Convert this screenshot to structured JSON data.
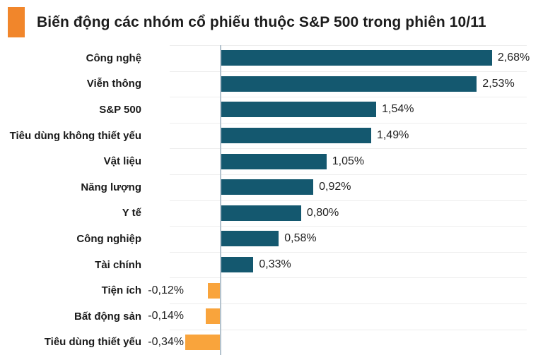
{
  "title": {
    "text": "Biến động các nhóm cổ phiếu thuộc S&P 500 trong phiên 10/11",
    "accent_color": "#f1862b"
  },
  "chart_data": {
    "type": "bar",
    "orientation": "horizontal",
    "title": "Biến động các nhóm cổ phiếu thuộc S&P 500 trong phiên 10/11",
    "unit": "%",
    "decimal_separator": ",",
    "categories": [
      "Công nghệ",
      "Viễn thông",
      "S&P 500",
      "Tiêu dùng không thiết yếu",
      "Vật liệu",
      "Năng lượng",
      "Y tế",
      "Công nghiệp",
      "Tài chính",
      "Tiện ích",
      "Bất động sản",
      "Tiêu dùng thiết yếu"
    ],
    "values": [
      2.68,
      2.53,
      1.54,
      1.49,
      1.05,
      0.92,
      0.8,
      0.58,
      0.33,
      -0.12,
      -0.14,
      -0.34
    ],
    "value_labels": [
      "2,68%",
      "2,53%",
      "1,54%",
      "1,49%",
      "1,05%",
      "0,92%",
      "0,80%",
      "0,58%",
      "0,33%",
      "-0,12%",
      "-0,14%",
      "-0,34%"
    ],
    "xlim": [
      -0.34,
      2.68
    ],
    "grid": true,
    "legend": "none",
    "positive_color": "#14586f",
    "negative_color": "#f9a43c",
    "axis_color": "#b4c3ce",
    "gridline_color": "#ededed",
    "label_color": "#1a1a1a",
    "value_color": "#222222"
  }
}
